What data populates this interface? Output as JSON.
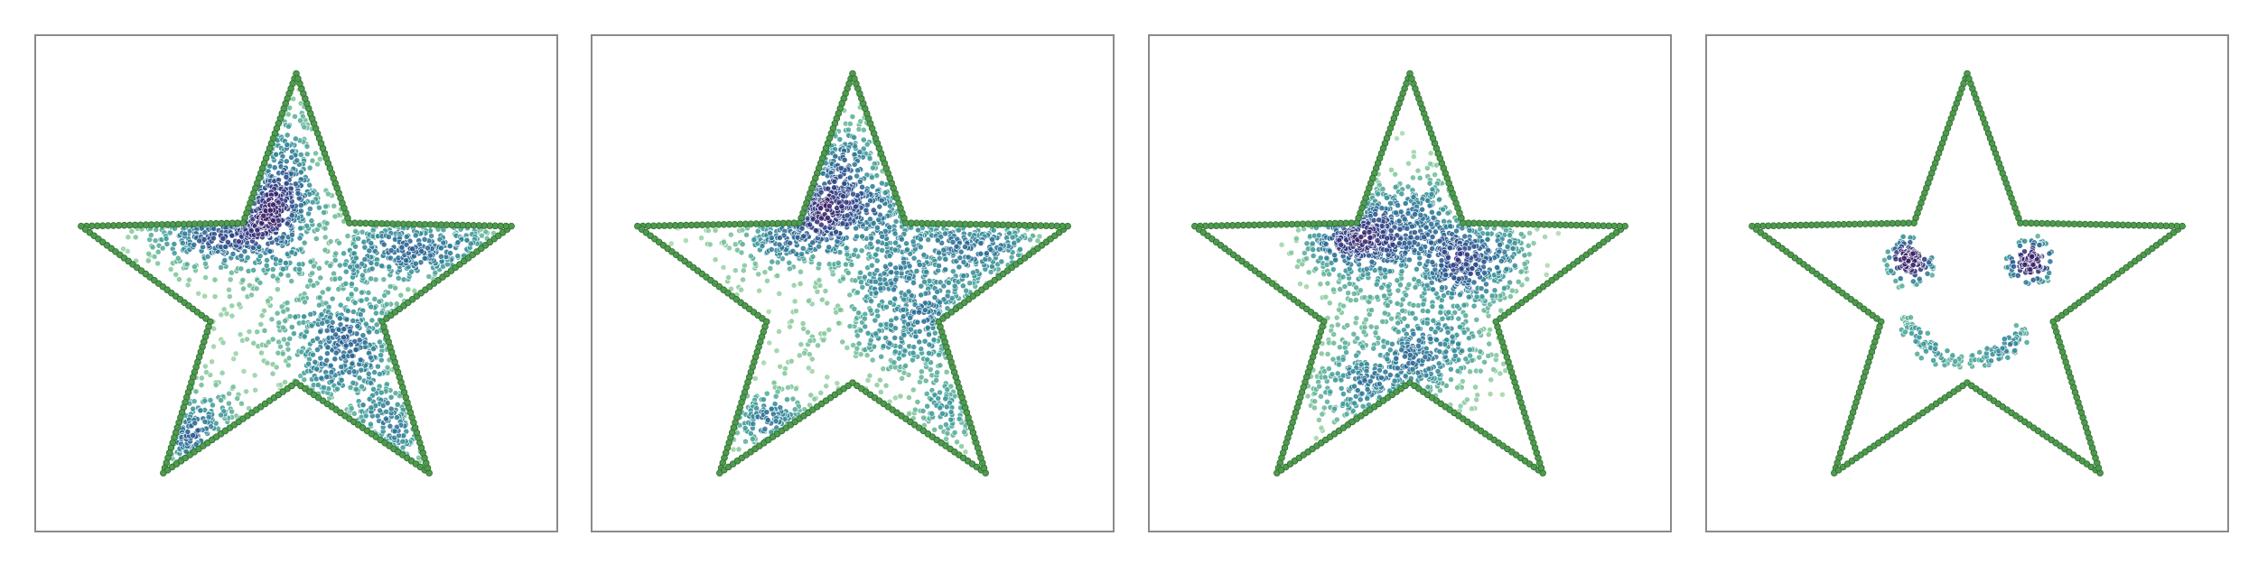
{
  "chart_data": [
    {
      "type": "scatter",
      "title": "",
      "xlabel": "",
      "ylabel": "",
      "xlim": [
        -1.15,
        1.15
      ],
      "ylim": [
        -1.12,
        1.12
      ],
      "grid": false,
      "colormap": [
        "#b6e0b0",
        "#7cc49a",
        "#3f9c9a",
        "#2a6f96",
        "#2f3f86",
        "#3b1f66"
      ],
      "outline": {
        "shape": "five-point-star",
        "color": "#4f9b4f",
        "edge": "#2e6b2e",
        "count": 300
      },
      "clusters": [
        {
          "cx": -0.3,
          "cy": 0.33,
          "sx": 0.2,
          "sy": 0.13,
          "n": 520
        },
        {
          "cx": 0.22,
          "cy": -0.28,
          "sx": 0.18,
          "sy": 0.2,
          "n": 430
        },
        {
          "cx": 0.58,
          "cy": 0.18,
          "sx": 0.24,
          "sy": 0.1,
          "n": 300
        },
        {
          "cx": -0.05,
          "cy": 0.6,
          "sx": 0.07,
          "sy": 0.3,
          "n": 190
        },
        {
          "cx": -0.52,
          "cy": -0.65,
          "sx": 0.14,
          "sy": 0.11,
          "n": 150
        },
        {
          "cx": 0.45,
          "cy": -0.68,
          "sx": 0.12,
          "sy": 0.13,
          "n": 120
        },
        {
          "cx": 0.0,
          "cy": 0.0,
          "sx": 0.45,
          "sy": 0.45,
          "n": 200
        }
      ]
    },
    {
      "type": "scatter",
      "title": "",
      "xlabel": "",
      "ylabel": "",
      "xlim": [
        -1.15,
        1.15
      ],
      "ylim": [
        -1.12,
        1.12
      ],
      "grid": false,
      "colormap": [
        "#b6e0b0",
        "#7cc49a",
        "#3f9c9a",
        "#2a6f96",
        "#2f3f86",
        "#3b1f66"
      ],
      "outline": {
        "shape": "five-point-star",
        "color": "#4f9b4f",
        "edge": "#2e6b2e",
        "count": 300
      },
      "clusters": [
        {
          "cx": -0.2,
          "cy": 0.33,
          "sx": 0.19,
          "sy": 0.13,
          "n": 480
        },
        {
          "cx": 0.27,
          "cy": -0.12,
          "sx": 0.22,
          "sy": 0.2,
          "n": 480
        },
        {
          "cx": 0.55,
          "cy": 0.2,
          "sx": 0.22,
          "sy": 0.12,
          "n": 240
        },
        {
          "cx": 0.02,
          "cy": 0.58,
          "sx": 0.12,
          "sy": 0.22,
          "n": 170
        },
        {
          "cx": -0.38,
          "cy": -0.62,
          "sx": 0.17,
          "sy": 0.08,
          "n": 130
        },
        {
          "cx": 0.42,
          "cy": -0.6,
          "sx": 0.1,
          "sy": 0.12,
          "n": 90
        },
        {
          "cx": 0.0,
          "cy": 0.0,
          "sx": 0.45,
          "sy": 0.45,
          "n": 190
        }
      ]
    },
    {
      "type": "scatter",
      "title": "",
      "xlabel": "",
      "ylabel": "",
      "xlim": [
        -1.15,
        1.15
      ],
      "ylim": [
        -1.12,
        1.12
      ],
      "grid": false,
      "colormap": [
        "#b6e0b0",
        "#7cc49a",
        "#3f9c9a",
        "#2a6f96",
        "#2f3f86",
        "#3b1f66"
      ],
      "outline": {
        "shape": "five-point-star",
        "color": "#4f9b4f",
        "edge": "#2e6b2e",
        "count": 300
      },
      "clusters": [
        {
          "cx": -0.24,
          "cy": 0.2,
          "sx": 0.14,
          "sy": 0.12,
          "n": 420
        },
        {
          "cx": 0.26,
          "cy": 0.1,
          "sx": 0.17,
          "sy": 0.12,
          "n": 430
        },
        {
          "cx": 0.0,
          "cy": -0.32,
          "sx": 0.22,
          "sy": 0.14,
          "n": 380
        },
        {
          "cx": 0.05,
          "cy": 0.35,
          "sx": 0.14,
          "sy": 0.12,
          "n": 160
        },
        {
          "cx": -0.18,
          "cy": -0.5,
          "sx": 0.16,
          "sy": 0.09,
          "n": 150
        },
        {
          "cx": 0.0,
          "cy": -0.05,
          "sx": 0.28,
          "sy": 0.25,
          "n": 120
        }
      ]
    },
    {
      "type": "scatter",
      "title": "",
      "xlabel": "",
      "ylabel": "",
      "xlim": [
        -1.15,
        1.15
      ],
      "ylim": [
        -1.12,
        1.12
      ],
      "grid": false,
      "colormap": [
        "#b6e0b0",
        "#7cc49a",
        "#3f9c9a",
        "#2a6f96",
        "#2f3f86",
        "#3b1f66"
      ],
      "outline": {
        "shape": "five-point-star",
        "color": "#4f9b4f",
        "edge": "#2e6b2e",
        "count": 300
      },
      "smiley": {
        "left_eye": {
          "cx": -0.25,
          "cy": 0.1,
          "r_core": 0.06,
          "r_ring": 0.1,
          "n_core": 90,
          "n_ring": 40
        },
        "right_eye": {
          "cx": 0.28,
          "cy": 0.1,
          "r_core": 0.06,
          "r_ring": 0.1,
          "n_core": 90,
          "n_ring": 40
        },
        "mouth": {
          "cx": 0.0,
          "cy": -0.05,
          "r": 0.3,
          "start_deg": 200,
          "end_deg": 330,
          "n": 140
        }
      }
    }
  ]
}
